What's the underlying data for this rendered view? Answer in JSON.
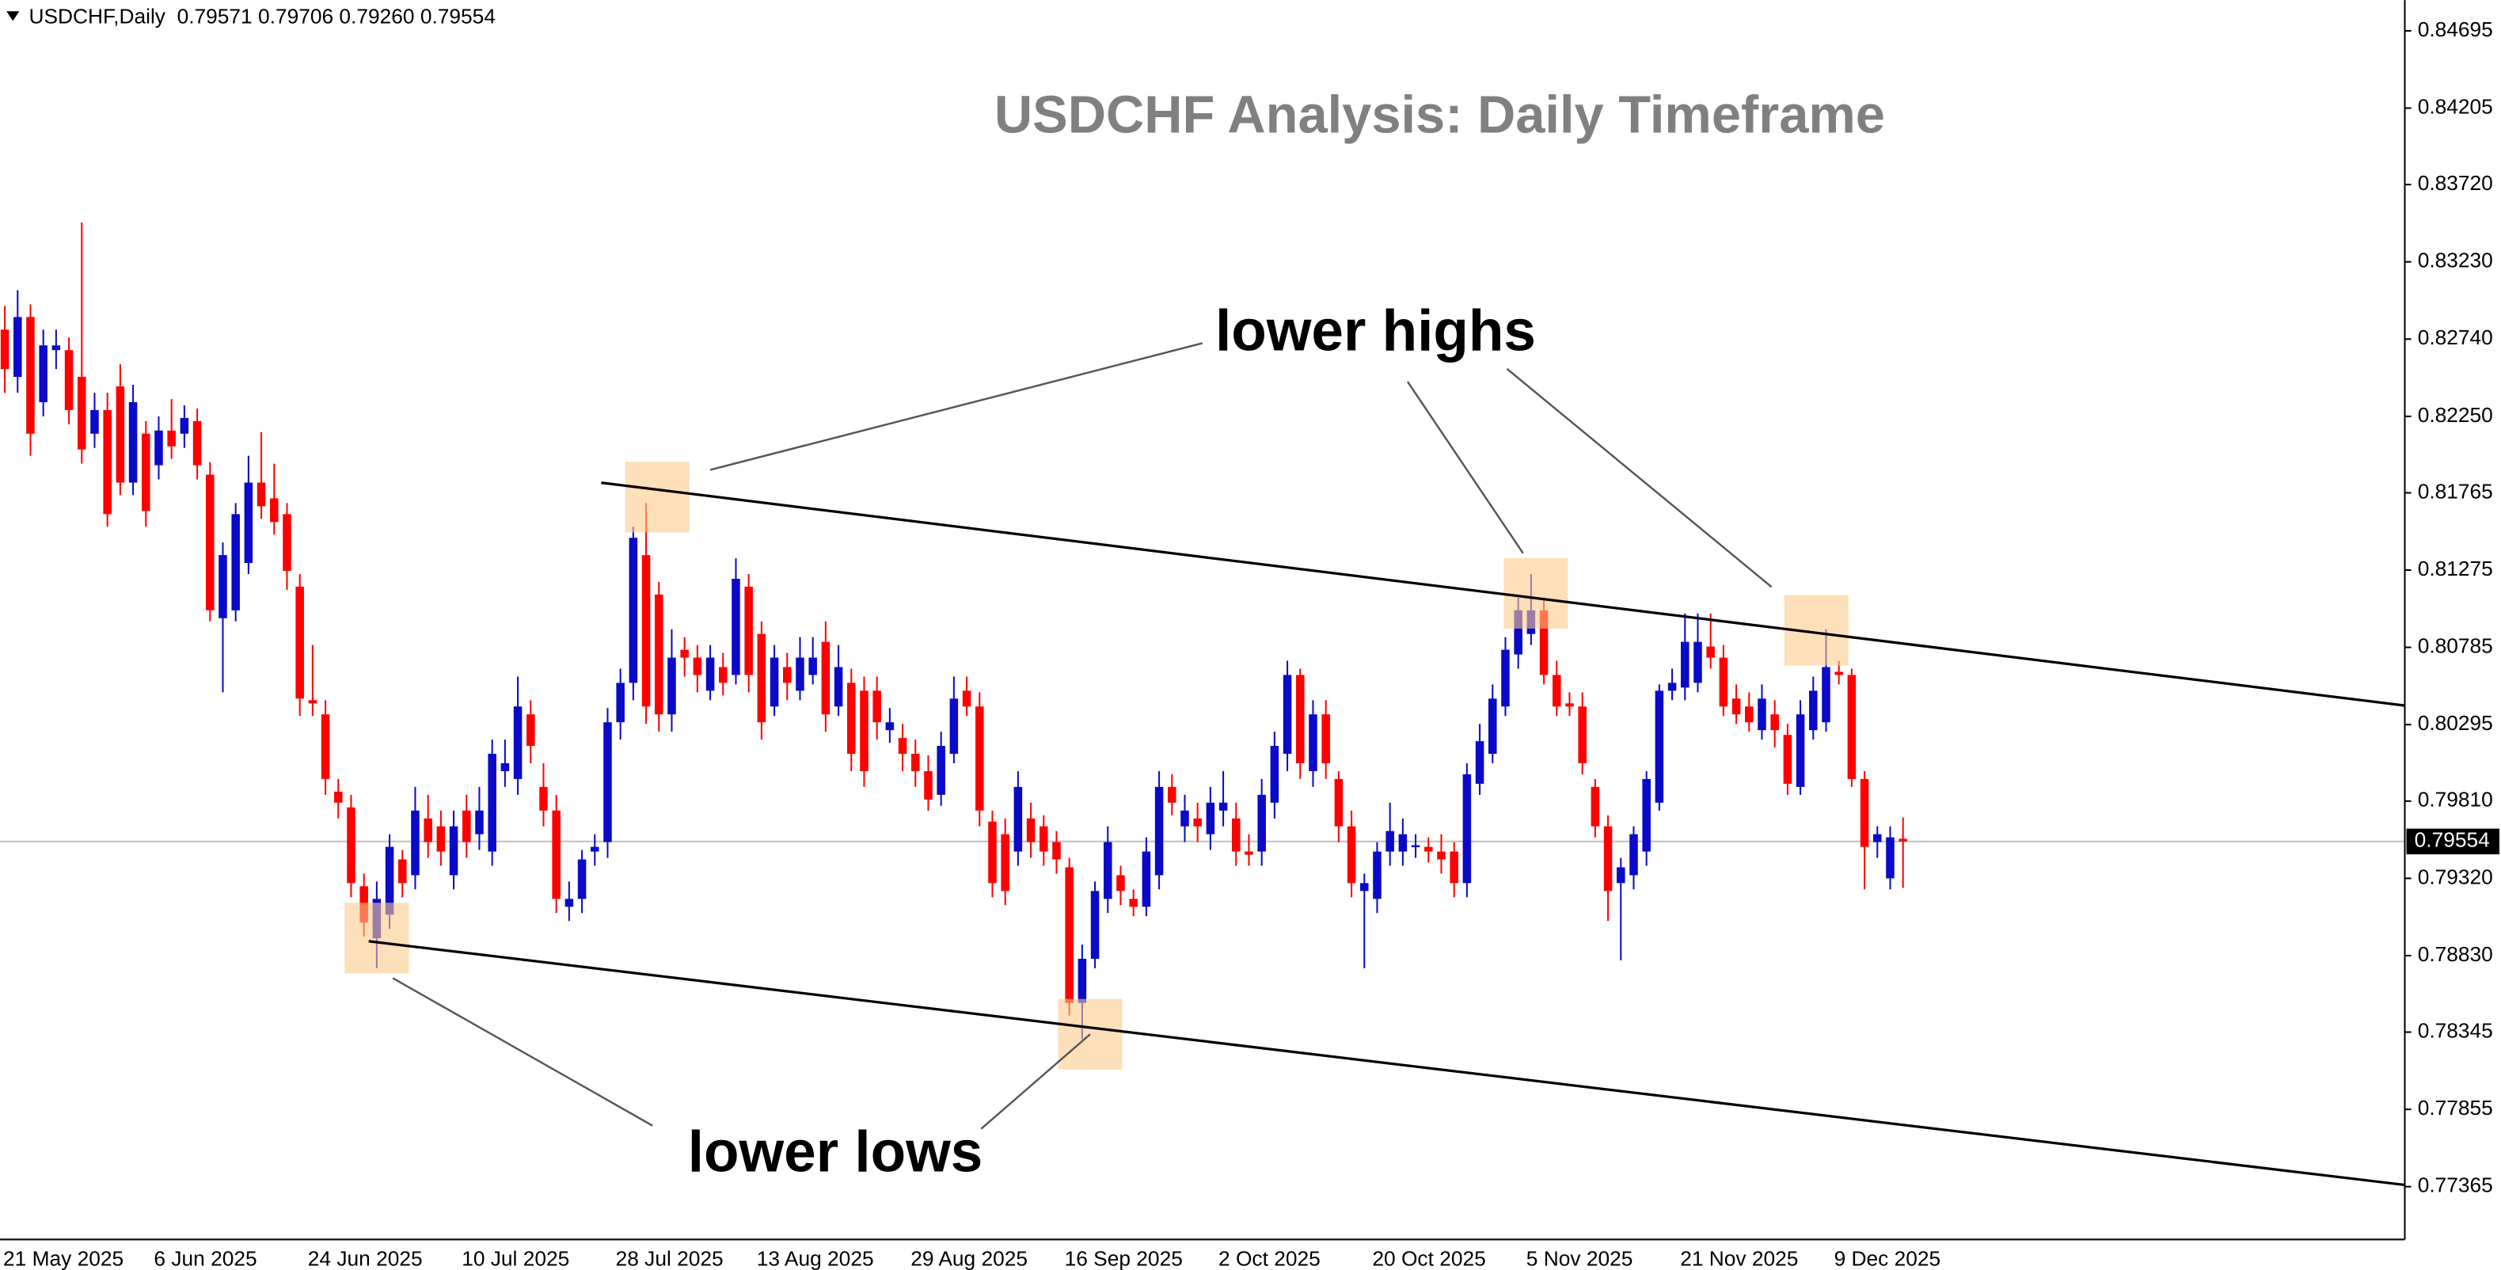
{
  "chart_data": {
    "type": "candlestick",
    "header": "USDCHF,Daily  0.79571 0.79706 0.79260 0.79554",
    "title": "USDCHF Analysis: Daily Timeframe",
    "annotations": [
      "lower highs",
      "lower lows"
    ],
    "up_color": "#0a0ac8",
    "down_color": "#ff0000",
    "ylim": [
      0.7703,
      0.8489
    ],
    "yticks": [
      0.84695,
      0.84205,
      {
        "value": 0.8372,
        "label": "0.83720"
      },
      {
        "value": 0.8323,
        "label": "0.83230"
      },
      {
        "value": 0.8274,
        "label": "0.82740"
      },
      {
        "value": 0.8225,
        "label": "0.82250"
      },
      0.81765,
      0.81275,
      0.80785,
      0.80295,
      {
        "value": 0.7981,
        "label": "0.79810"
      },
      {
        "value": 0.7932,
        "label": "0.79320"
      },
      {
        "value": 0.7883,
        "label": "0.78830"
      },
      0.78345,
      0.77855,
      0.77365
    ],
    "last_price": 0.79554,
    "categories": [
      "21 May 2025",
      null,
      null,
      null,
      null,
      null,
      null,
      null,
      null,
      null,
      null,
      null,
      "6 Jun 2025",
      null,
      null,
      null,
      null,
      null,
      null,
      null,
      null,
      null,
      null,
      null,
      "24 Jun 2025",
      null,
      null,
      null,
      null,
      null,
      null,
      null,
      null,
      null,
      null,
      null,
      "10 Jul 2025",
      null,
      null,
      null,
      null,
      null,
      null,
      null,
      null,
      null,
      null,
      null,
      "28 Jul 2025",
      null,
      null,
      null,
      null,
      null,
      null,
      null,
      null,
      null,
      null,
      "13 Aug 2025",
      null,
      null,
      null,
      null,
      null,
      null,
      null,
      null,
      null,
      null,
      null,
      "29 Aug 2025",
      null,
      null,
      null,
      null,
      null,
      null,
      null,
      null,
      null,
      null,
      null,
      "16 Sep 2025",
      null,
      null,
      null,
      null,
      null,
      null,
      null,
      null,
      null,
      null,
      null,
      "2 Oct 2025",
      null,
      null,
      null,
      null,
      null,
      null,
      null,
      null,
      null,
      null,
      null,
      "20 Oct 2025",
      null,
      null,
      null,
      null,
      null,
      null,
      null,
      null,
      null,
      null,
      null,
      "5 Nov 2025",
      null,
      null,
      null,
      null,
      null,
      null,
      null,
      null,
      null,
      null,
      null,
      "21 Nov 2025",
      null,
      null,
      null,
      null,
      null,
      null,
      null,
      null,
      null,
      null,
      null,
      "9 Dec 2025",
      null,
      null,
      null,
      null,
      null
    ],
    "open": [
      0.828,
      0.825,
      0.8288,
      0.8234,
      0.8267,
      0.8267,
      0.825,
      0.8214,
      0.8229,
      0.8244,
      0.8183,
      0.8214,
      0.8194,
      0.8216,
      0.8214,
      0.8222,
      0.8188,
      0.8097,
      0.8102,
      0.8132,
      0.8183,
      0.8173,
      0.8163,
      0.8117,
      0.8045,
      0.8036,
      0.7987,
      0.7977,
      0.7927,
      0.7894,
      0.7909,
      0.7944,
      0.7934,
      0.797,
      0.7965,
      0.7934,
      0.7975,
      0.796,
      0.7949,
      0.8,
      0.7995,
      0.8036,
      0.799,
      0.7975,
      0.7914,
      0.7919,
      0.7949,
      0.7955,
      0.8031,
      0.8056,
      0.8137,
      0.8112,
      0.8036,
      0.8077,
      0.8072,
      0.8051,
      0.8066,
      0.8061,
      0.8117,
      0.8087,
      0.8041,
      0.8066,
      0.8051,
      0.8061,
      0.8082,
      0.8041,
      0.8056,
      0.8051,
      0.8051,
      0.8026,
      0.8021,
      0.8011,
      0.8,
      0.7985,
      0.8011,
      0.8051,
      0.8041,
      0.7968,
      0.796,
      0.7949,
      0.797,
      0.7965,
      0.7955,
      0.7939,
      0.7853,
      0.7881,
      0.7919,
      0.7934,
      0.7919,
      0.7914,
      0.7934,
      0.799,
      0.7965,
      0.797,
      0.796,
      0.7975,
      0.797,
      0.7949,
      0.7949,
      0.798,
      0.8011,
      0.8061,
      0.8,
      0.8036,
      0.7995,
      0.7965,
      0.7924,
      0.7919,
      0.7949,
      0.7949,
      0.7952,
      0.7952,
      0.7949,
      0.7949,
      0.7929,
      0.7992,
      0.8011,
      0.8041,
      0.8074,
      0.8087,
      0.8102,
      0.8061,
      0.8043,
      0.8041,
      0.799,
      0.7965,
      0.7929,
      0.7934,
      0.7949,
      0.798,
      0.8051,
      0.8053,
      0.8056,
      0.8079,
      0.8072,
      0.8046,
      0.8041,
      0.8026,
      0.8036,
      0.8023,
      0.799,
      0.8026,
      0.8031,
      0.8063,
      0.8061,
      0.7995,
      0.7955,
      0.7932,
      0.79571
    ],
    "high": [
      0.8295,
      0.8305,
      0.8296,
      0.828,
      0.828,
      0.8275,
      0.8348,
      0.824,
      0.824,
      0.8258,
      0.8245,
      0.8222,
      0.8225,
      0.8236,
      0.8232,
      0.823,
      0.8196,
      0.8145,
      0.817,
      0.82,
      0.8215,
      0.8195,
      0.817,
      0.8125,
      0.808,
      0.8045,
      0.7995,
      0.7985,
      0.7935,
      0.793,
      0.796,
      0.795,
      0.799,
      0.7985,
      0.7975,
      0.7975,
      0.7985,
      0.799,
      0.802,
      0.802,
      0.806,
      0.8045,
      0.8005,
      0.7985,
      0.793,
      0.795,
      0.796,
      0.804,
      0.8065,
      0.8155,
      0.817,
      0.812,
      0.809,
      0.8085,
      0.808,
      0.808,
      0.8075,
      0.8135,
      0.8125,
      0.8095,
      0.808,
      0.8075,
      0.8085,
      0.8085,
      0.8095,
      0.808,
      0.8065,
      0.806,
      0.806,
      0.804,
      0.803,
      0.802,
      0.801,
      0.8025,
      0.806,
      0.806,
      0.805,
      0.7975,
      0.797,
      0.8,
      0.798,
      0.7972,
      0.7962,
      0.7945,
      0.789,
      0.793,
      0.7965,
      0.794,
      0.7925,
      0.7958,
      0.8,
      0.7998,
      0.7985,
      0.798,
      0.799,
      0.8,
      0.798,
      0.796,
      0.7995,
      0.8025,
      0.807,
      0.8065,
      0.8045,
      0.8045,
      0.8,
      0.7975,
      0.7935,
      0.7955,
      0.798,
      0.797,
      0.796,
      0.7958,
      0.796,
      0.7955,
      0.8005,
      0.803,
      0.8055,
      0.8085,
      0.811,
      0.8125,
      0.811,
      0.807,
      0.805,
      0.805,
      0.7995,
      0.7972,
      0.7945,
      0.7965,
      0.8,
      0.8055,
      0.8065,
      0.81,
      0.81,
      0.81,
      0.808,
      0.8055,
      0.805,
      0.8055,
      0.8045,
      0.803,
      0.8045,
      0.806,
      0.809,
      0.807,
      0.8065,
      0.8,
      0.7965,
      0.7965,
      0.79706
    ],
    "low": [
      0.824,
      0.824,
      0.82,
      0.8225,
      0.8255,
      0.822,
      0.8195,
      0.8205,
      0.8155,
      0.8175,
      0.8175,
      0.8155,
      0.8185,
      0.8198,
      0.8205,
      0.8185,
      0.8095,
      0.805,
      0.8095,
      0.8125,
      0.816,
      0.815,
      0.8115,
      0.8035,
      0.8035,
      0.7985,
      0.797,
      0.792,
      0.7895,
      0.7875,
      0.79,
      0.792,
      0.7925,
      0.7945,
      0.794,
      0.7925,
      0.7945,
      0.795,
      0.794,
      0.799,
      0.7985,
      0.8005,
      0.7965,
      0.791,
      0.7905,
      0.791,
      0.794,
      0.7945,
      0.802,
      0.8045,
      0.803,
      0.8025,
      0.8025,
      0.806,
      0.805,
      0.8045,
      0.8048,
      0.8055,
      0.805,
      0.802,
      0.8035,
      0.8045,
      0.8045,
      0.8055,
      0.8025,
      0.8035,
      0.8,
      0.799,
      0.802,
      0.8018,
      0.8,
      0.799,
      0.7975,
      0.7978,
      0.8005,
      0.8035,
      0.7965,
      0.792,
      0.7915,
      0.794,
      0.7945,
      0.794,
      0.7935,
      0.7845,
      0.783,
      0.7875,
      0.791,
      0.7915,
      0.7908,
      0.7908,
      0.7925,
      0.7972,
      0.7955,
      0.7955,
      0.795,
      0.7965,
      0.794,
      0.794,
      0.794,
      0.797,
      0.8,
      0.7995,
      0.799,
      0.7995,
      0.7955,
      0.792,
      0.7875,
      0.791,
      0.794,
      0.794,
      0.7945,
      0.7942,
      0.7935,
      0.792,
      0.792,
      0.7985,
      0.8005,
      0.8035,
      0.8065,
      0.808,
      0.8055,
      0.8035,
      0.8035,
      0.7998,
      0.7958,
      0.7905,
      0.788,
      0.7925,
      0.794,
      0.7975,
      0.8045,
      0.8045,
      0.805,
      0.8065,
      0.8035,
      0.803,
      0.8025,
      0.802,
      0.8015,
      0.7985,
      0.7985,
      0.802,
      0.8025,
      0.8055,
      0.799,
      0.7925,
      0.7945,
      0.7925,
      0.7926
    ],
    "close": [
      0.8255,
      0.8288,
      0.8214,
      0.827,
      0.827,
      0.8229,
      0.8204,
      0.8229,
      0.8163,
      0.8183,
      0.8234,
      0.8165,
      0.8216,
      0.8206,
      0.8224,
      0.8194,
      0.8102,
      0.8137,
      0.8163,
      0.8183,
      0.8168,
      0.8158,
      0.8127,
      0.8046,
      0.8043,
      0.7995,
      0.798,
      0.7929,
      0.7904,
      0.7919,
      0.7952,
      0.7929,
      0.7975,
      0.7955,
      0.7949,
      0.7965,
      0.7955,
      0.7975,
      0.8011,
      0.8005,
      0.8041,
      0.8016,
      0.7975,
      0.7919,
      0.7919,
      0.7944,
      0.7952,
      0.8031,
      0.8056,
      0.8148,
      0.8041,
      0.8036,
      0.8072,
      0.8072,
      0.8061,
      0.8072,
      0.8056,
      0.8122,
      0.8061,
      0.8031,
      0.8072,
      0.8056,
      0.8072,
      0.8072,
      0.8036,
      0.8066,
      0.8011,
      0.8,
      0.8031,
      0.8031,
      0.8011,
      0.8,
      0.7982,
      0.8016,
      0.8046,
      0.8041,
      0.7975,
      0.7929,
      0.7924,
      0.799,
      0.7955,
      0.7949,
      0.7944,
      0.7853,
      0.7881,
      0.7924,
      0.7955,
      0.7924,
      0.7914,
      0.7949,
      0.799,
      0.798,
      0.7975,
      0.7965,
      0.798,
      0.798,
      0.7949,
      0.7947,
      0.7985,
      0.8016,
      0.8061,
      0.8005,
      0.8036,
      0.8005,
      0.7965,
      0.7929,
      0.7929,
      0.7949,
      0.7962,
      0.796,
      0.7953,
      0.7949,
      0.7944,
      0.7929,
      0.7998,
      0.8019,
      0.8046,
      0.8077,
      0.8102,
      0.8102,
      0.8061,
      0.8041,
      0.8041,
      0.8005,
      0.7965,
      0.7924,
      0.7939,
      0.796,
      0.7995,
      0.8051,
      0.8056,
      0.8082,
      0.8082,
      0.8072,
      0.8041,
      0.8036,
      0.8031,
      0.8046,
      0.8026,
      0.7992,
      0.8036,
      0.8051,
      0.8066,
      0.8061,
      0.7995,
      0.7952,
      0.796,
      0.7958,
      0.79554
    ]
  }
}
